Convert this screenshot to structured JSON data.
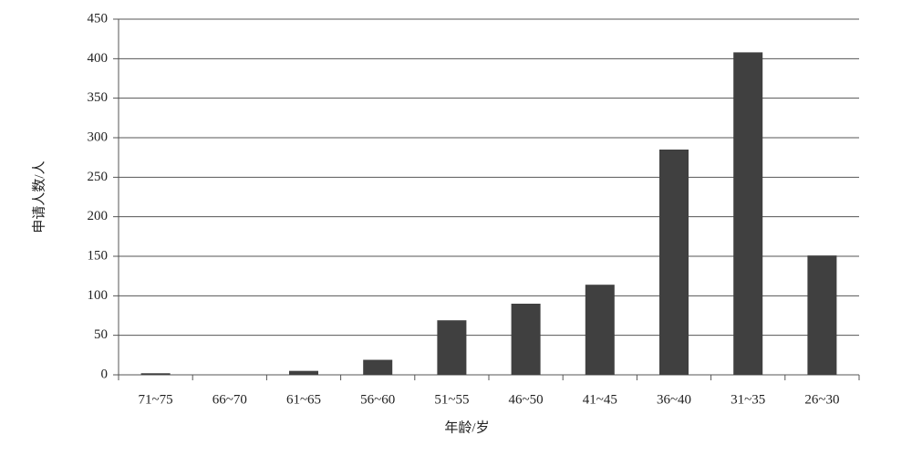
{
  "chart_data": {
    "type": "bar",
    "x_label": "年龄/岁",
    "y_label": "申请人数/人",
    "categories": [
      "71~75",
      "66~70",
      "61~65",
      "56~60",
      "51~55",
      "46~50",
      "41~45",
      "36~40",
      "31~35",
      "26~30"
    ],
    "values": [
      2,
      0,
      5,
      19,
      69,
      90,
      114,
      285,
      408,
      151
    ],
    "color": "#404040",
    "ylim": [
      0,
      450
    ],
    "yticks": [
      0,
      50,
      100,
      150,
      200,
      250,
      300,
      350,
      400,
      450
    ],
    "grid": true
  }
}
